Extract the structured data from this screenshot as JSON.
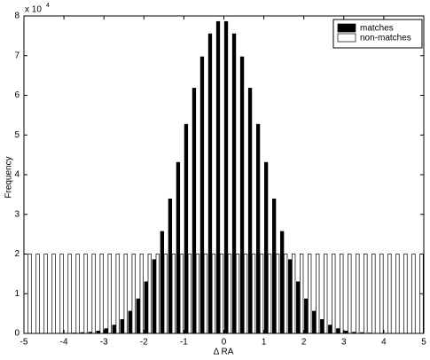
{
  "chart_data": {
    "type": "grouped-bar",
    "xlabel": "Δ RA",
    "ylabel": "Frequency",
    "multiplier": {
      "base": "x 10",
      "exponent": "4"
    },
    "x": [
      -4.9,
      -4.7,
      -4.5,
      -4.3,
      -4.1,
      -3.9,
      -3.7,
      -3.5,
      -3.3,
      -3.1,
      -2.9,
      -2.7,
      -2.5,
      -2.3,
      -2.1,
      -1.9,
      -1.7,
      -1.5,
      -1.3,
      -1.1,
      -0.9,
      -0.7,
      -0.5,
      -0.3,
      -0.1,
      0.1,
      0.3,
      0.5,
      0.7,
      0.9,
      1.1,
      1.3,
      1.5,
      1.7,
      1.9,
      2.1,
      2.3,
      2.5,
      2.7,
      2.9,
      3.1,
      3.3,
      3.5,
      3.7,
      3.9,
      4.1,
      4.3,
      4.5,
      4.7,
      4.9
    ],
    "series": [
      {
        "name": "matches",
        "color": "#000000",
        "values": [
          0,
          0,
          0,
          0,
          0,
          0,
          0.01,
          0.02,
          0.03,
          0.06,
          0.12,
          0.21,
          0.35,
          0.56,
          0.87,
          1.3,
          1.86,
          2.57,
          3.39,
          4.31,
          5.27,
          6.18,
          6.97,
          7.55,
          7.86,
          7.86,
          7.55,
          6.97,
          6.18,
          5.27,
          4.31,
          3.39,
          2.57,
          1.86,
          1.3,
          0.87,
          0.56,
          0.35,
          0.21,
          0.12,
          0.06,
          0.03,
          0.02,
          0.01,
          0,
          0,
          0,
          0,
          0,
          0
        ]
      },
      {
        "name": "non-matches",
        "color": "#ffffff",
        "values": [
          2,
          2,
          2,
          2,
          2,
          2,
          2,
          2,
          2,
          2,
          2,
          2,
          2,
          2,
          2,
          2,
          2,
          2,
          2,
          2,
          2,
          2,
          2,
          2,
          2,
          2,
          2,
          2,
          2,
          2,
          2,
          2,
          2,
          2,
          2,
          2,
          2,
          2,
          2,
          2,
          2,
          2,
          2,
          2,
          2,
          2,
          2,
          2,
          2,
          2
        ]
      }
    ],
    "xlim": [
      -5,
      5
    ],
    "ylim": [
      0,
      8
    ],
    "xticks": [
      -5,
      -4,
      -3,
      -2,
      -1,
      0,
      1,
      2,
      3,
      4,
      5
    ],
    "yticks": [
      0,
      1,
      2,
      3,
      4,
      5,
      6,
      7,
      8
    ],
    "legend": "northeast"
  }
}
